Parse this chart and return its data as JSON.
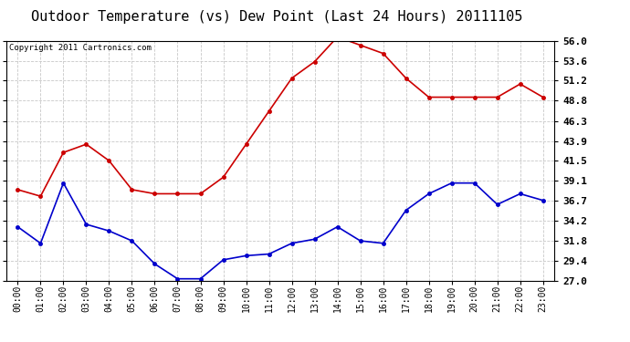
{
  "title": "Outdoor Temperature (vs) Dew Point (Last 24 Hours) 20111105",
  "copyright": "Copyright 2011 Cartronics.com",
  "x_labels": [
    "00:00",
    "01:00",
    "02:00",
    "03:00",
    "04:00",
    "05:00",
    "06:00",
    "07:00",
    "08:00",
    "09:00",
    "10:00",
    "11:00",
    "12:00",
    "13:00",
    "14:00",
    "15:00",
    "16:00",
    "17:00",
    "18:00",
    "19:00",
    "20:00",
    "21:00",
    "22:00",
    "23:00"
  ],
  "temp_red": [
    38.0,
    37.2,
    42.5,
    43.5,
    41.5,
    38.0,
    37.5,
    37.5,
    37.5,
    39.5,
    43.5,
    47.5,
    51.5,
    53.5,
    56.5,
    55.5,
    54.5,
    51.5,
    49.2,
    49.2,
    49.2,
    49.2,
    50.8,
    49.2
  ],
  "dew_blue": [
    33.5,
    31.5,
    38.8,
    33.8,
    33.0,
    31.8,
    29.0,
    27.2,
    27.2,
    29.5,
    30.0,
    30.2,
    31.5,
    32.0,
    33.5,
    31.8,
    31.5,
    35.5,
    37.5,
    38.8,
    38.8,
    36.2,
    37.5,
    36.7
  ],
  "ylim": [
    27.0,
    56.0
  ],
  "yticks": [
    27.0,
    29.4,
    31.8,
    34.2,
    36.7,
    39.1,
    41.5,
    43.9,
    46.3,
    48.8,
    51.2,
    53.6,
    56.0
  ],
  "red_color": "#cc0000",
  "blue_color": "#0000cc",
  "bg_color": "#ffffff",
  "grid_color": "#c8c8c8",
  "title_fontsize": 11,
  "copyright_fontsize": 6.5,
  "tick_fontsize": 7,
  "ytick_fontsize": 8
}
